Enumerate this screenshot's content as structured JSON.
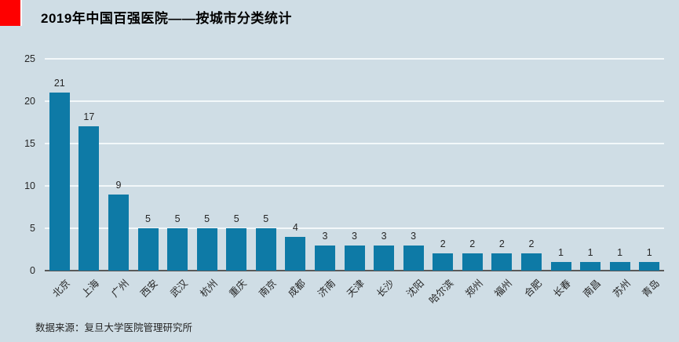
{
  "header": {
    "title": "2019年中国百强医院——按城市分类统计"
  },
  "footer": {
    "source": "数据来源：复旦大学医院管理研究所"
  },
  "colors": {
    "background": "#cfdde5",
    "bar": "#0e7aa6",
    "accent_red": "#fe0000",
    "gridline": "#f3f8fa",
    "axis_line": "#595959",
    "text": "#262626",
    "title_text": "#000000"
  },
  "chart_data": {
    "type": "bar",
    "title": "2019年中国百强医院——按城市分类统计",
    "categories": [
      "北京",
      "上海",
      "广州",
      "西安",
      "武汉",
      "杭州",
      "重庆",
      "南京",
      "成都",
      "济南",
      "天津",
      "长沙",
      "沈阳",
      "哈尔滨",
      "郑州",
      "福州",
      "合肥",
      "长春",
      "南昌",
      "苏州",
      "青岛"
    ],
    "values": [
      21,
      17,
      9,
      5,
      5,
      5,
      5,
      5,
      4,
      3,
      3,
      3,
      3,
      2,
      2,
      2,
      2,
      1,
      1,
      1,
      1
    ],
    "xlabel": "",
    "ylabel": "",
    "ylim": [
      0,
      25
    ],
    "yticks": [
      0,
      5,
      10,
      15,
      20,
      25
    ],
    "grid": true,
    "data_labels": true,
    "legend": "none",
    "tick_label_rotation_deg": -45,
    "source_note": "数据来源：复旦大学医院管理研究所"
  }
}
